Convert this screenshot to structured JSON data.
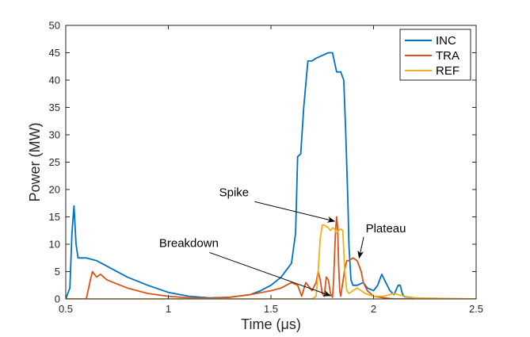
{
  "chart_data": {
    "type": "line",
    "xlabel": "Time (μs)",
    "ylabel": "Power (MW)",
    "xlim": [
      0.5,
      2.5
    ],
    "ylim": [
      0,
      50
    ],
    "xticks": [
      0.5,
      1,
      1.5,
      2,
      2.5
    ],
    "xtick_labels": [
      "0.5",
      "1",
      "1.5",
      "2",
      "2.5"
    ],
    "yticks": [
      0,
      5,
      10,
      15,
      20,
      25,
      30,
      35,
      40,
      45,
      50
    ],
    "ytick_labels": [
      "0",
      "5",
      "10",
      "15",
      "20",
      "25",
      "30",
      "35",
      "40",
      "45",
      "50"
    ],
    "grid": false,
    "legend_position": "top-right",
    "series": [
      {
        "name": "INC",
        "color": "#0072BD",
        "x": [
          0.5,
          0.52,
          0.53,
          0.54,
          0.55,
          0.56,
          0.58,
          0.6,
          0.65,
          0.7,
          0.8,
          0.9,
          1.0,
          1.1,
          1.2,
          1.3,
          1.4,
          1.45,
          1.5,
          1.55,
          1.6,
          1.62,
          1.63,
          1.645,
          1.66,
          1.68,
          1.7,
          1.72,
          1.75,
          1.78,
          1.8,
          1.82,
          1.84,
          1.855,
          1.865,
          1.875,
          1.88,
          1.89,
          1.9,
          1.92,
          1.95,
          1.97,
          2.0,
          2.02,
          2.04,
          2.06,
          2.08,
          2.1,
          2.12,
          2.13,
          2.14,
          2.15,
          2.2,
          2.3,
          2.5
        ],
        "y": [
          0,
          2,
          12,
          17,
          10,
          7.5,
          7.5,
          7.5,
          7,
          6,
          4,
          2.5,
          1.2,
          0.5,
          0.2,
          0.3,
          0.8,
          1.5,
          2.5,
          4,
          6.5,
          12,
          26,
          26.5,
          35,
          43.5,
          43.5,
          44,
          44.5,
          45,
          45,
          41.5,
          41.5,
          40,
          30,
          18,
          10,
          3.5,
          2.5,
          2.5,
          3,
          2,
          1.5,
          2.5,
          4.5,
          3,
          1.5,
          0.8,
          2.5,
          2.5,
          1,
          0.4,
          0.2,
          0,
          0
        ]
      },
      {
        "name": "TRA",
        "color": "#D95319",
        "x": [
          0.5,
          0.6,
          0.62,
          0.63,
          0.64,
          0.65,
          0.67,
          0.7,
          0.8,
          0.9,
          1.0,
          1.1,
          1.2,
          1.3,
          1.4,
          1.5,
          1.55,
          1.6,
          1.63,
          1.65,
          1.67,
          1.7,
          1.72,
          1.73,
          1.74,
          1.75,
          1.76,
          1.77,
          1.78,
          1.79,
          1.8,
          1.805,
          1.81,
          1.815,
          1.82,
          1.825,
          1.83,
          1.835,
          1.84,
          1.85,
          1.86,
          1.87,
          1.88,
          1.9,
          1.92,
          1.94,
          1.95,
          1.97,
          2.0,
          2.05,
          2.1,
          2.5
        ],
        "y": [
          0,
          0,
          3.5,
          5,
          4.5,
          4,
          4.5,
          3.5,
          2,
          1,
          0.5,
          0.2,
          0.1,
          0.3,
          0.8,
          1.5,
          2,
          3,
          2.5,
          0.5,
          3,
          1.5,
          3,
          5,
          3.5,
          1,
          0.5,
          4,
          3.5,
          1,
          0.3,
          3,
          8,
          12.5,
          15,
          13,
          6,
          1.5,
          0.5,
          3,
          5.5,
          7,
          7,
          7.5,
          7,
          5,
          3,
          1.5,
          0.5,
          0.2,
          0,
          0
        ]
      },
      {
        "name": "REF",
        "color": "#EDB120",
        "x": [
          0.5,
          1.7,
          1.72,
          1.73,
          1.74,
          1.75,
          1.76,
          1.78,
          1.79,
          1.8,
          1.81,
          1.82,
          1.83,
          1.84,
          1.85,
          1.86,
          1.87,
          1.88,
          1.9,
          1.92,
          1.94,
          1.96,
          2.0,
          2.05,
          2.1,
          2.15,
          2.2,
          2.5
        ],
        "y": [
          0,
          0,
          0.5,
          5,
          11,
          13.5,
          13.5,
          13,
          12.5,
          13,
          12.8,
          12,
          12.5,
          12.8,
          12.5,
          5,
          1.5,
          1,
          1.5,
          2,
          1.5,
          1,
          0.5,
          0.5,
          1,
          0.5,
          0.2,
          0
        ]
      }
    ],
    "annotations": [
      {
        "text": "Spike",
        "text_x": 1.32,
        "text_y": 18.8,
        "arrow_to_x": 1.81,
        "arrow_to_y": 14.2
      },
      {
        "text": "Breakdown",
        "text_x": 1.1,
        "text_y": 9.5,
        "arrow_to_x": 1.79,
        "arrow_to_y": 0.6
      },
      {
        "text": "Plateau",
        "text_x": 2.06,
        "text_y": 12.2,
        "arrow_to_x": 1.93,
        "arrow_to_y": 7.5
      }
    ]
  }
}
